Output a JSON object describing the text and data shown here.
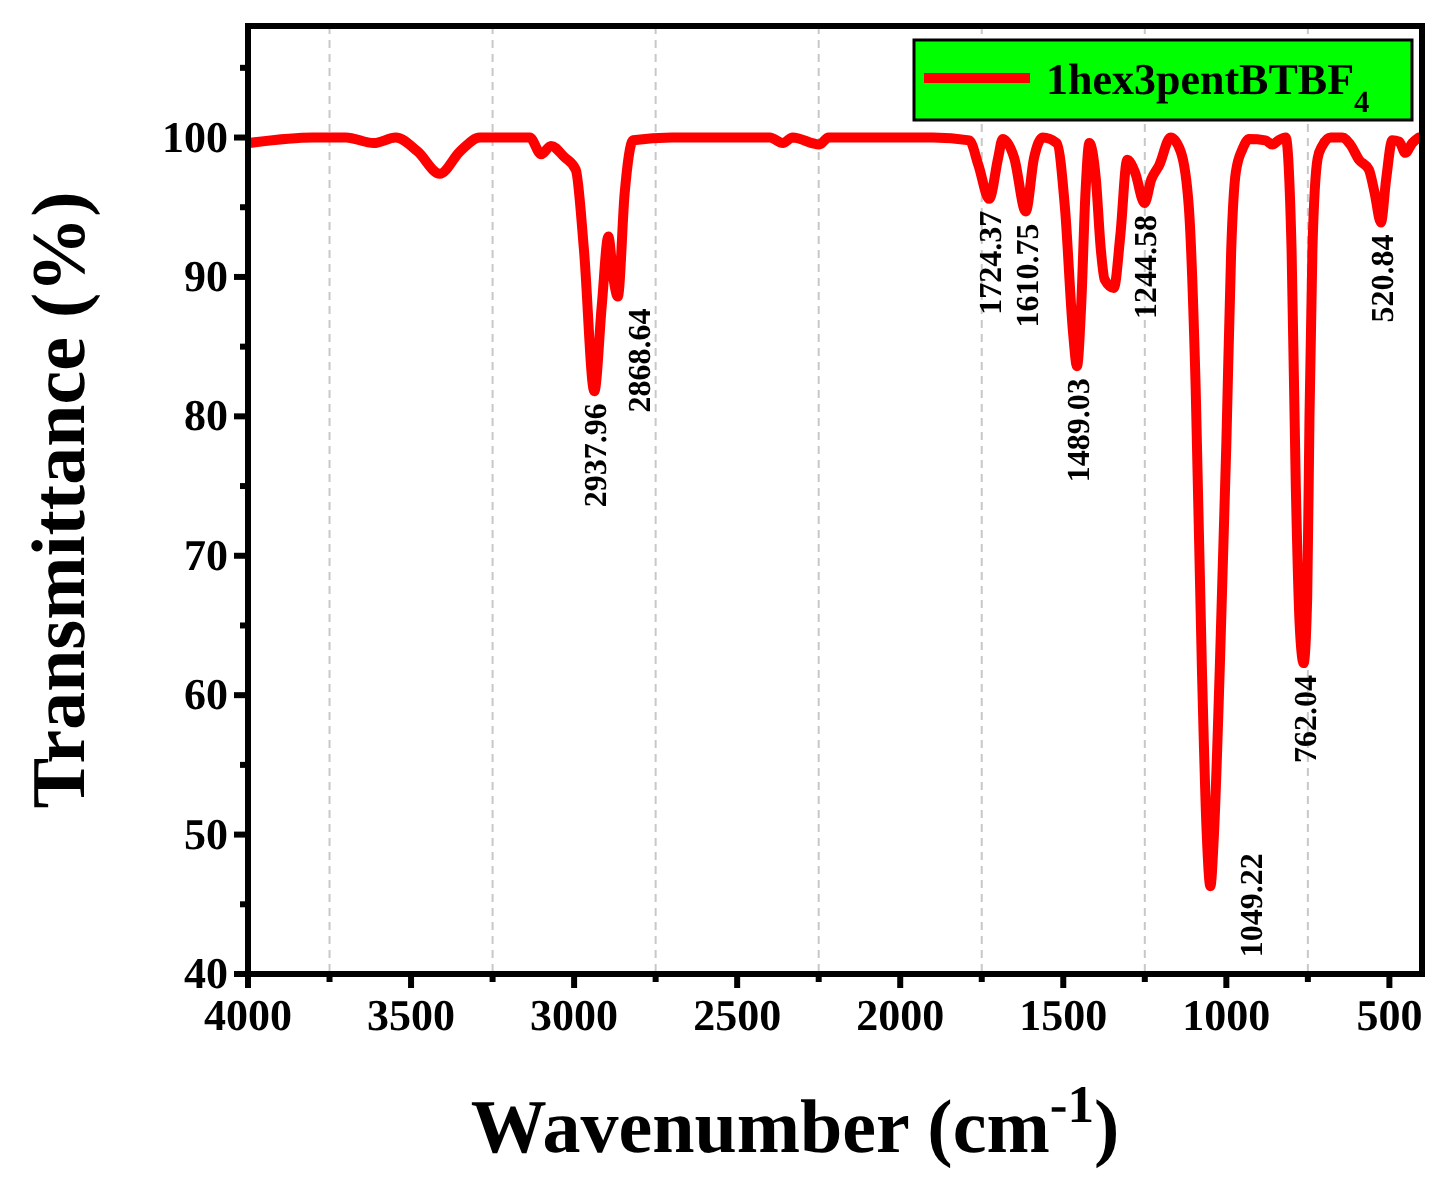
{
  "chart_data": {
    "type": "line",
    "xlabel": "Wavenumber (cm$^{-1}$)",
    "ylabel": "Transmittance (%)",
    "xlim": [
      4000,
      400
    ],
    "ylim": [
      40,
      108
    ],
    "xticks": [
      4000,
      {
        "value": 3750,
        "label": null
      },
      3500,
      {
        "value": 3250,
        "label": null
      },
      3000,
      {
        "value": 2750,
        "label": null
      },
      2500,
      {
        "value": 2250,
        "label": null
      },
      2000,
      {
        "value": 1750,
        "label": null
      },
      1500,
      {
        "value": 1250,
        "label": null
      },
      1000,
      {
        "value": 750,
        "label": null
      },
      500
    ],
    "yticks": [
      40,
      {
        "value": 45,
        "label": null
      },
      50,
      {
        "value": 55,
        "label": null
      },
      60,
      {
        "value": 65,
        "label": null
      },
      70,
      {
        "value": 75,
        "label": null
      },
      80,
      {
        "value": 85,
        "label": null
      },
      90,
      {
        "value": 95,
        "label": null
      },
      100,
      {
        "value": 105,
        "label": null
      }
    ],
    "grid": "x",
    "legend": "top right",
    "marker": "none",
    "line_style": "solid",
    "series": [
      {
        "name": "1hex3pentBTBF$_{4}$",
        "color": "#ff0000",
        "x": [
          4000,
          3800,
          3700,
          3614,
          3547,
          3480,
          3412,
          3350,
          3289,
          3136,
          3101,
          3071,
          3030,
          2995,
          2970,
          2938,
          2915,
          2895,
          2880,
          2866,
          2845,
          2819,
          2700,
          2400,
          2360,
          2330,
          2248,
          2220,
          1900,
          1788,
          1760,
          1727,
          1700,
          1686,
          1650,
          1615,
          1590,
          1563,
          1520,
          1495,
          1470,
          1458,
          1445,
          1432,
          1420,
          1400,
          1385,
          1373,
          1345,
          1325,
          1304,
          1280,
          1251,
          1230,
          1206,
          1171,
          1140,
          1115,
          1094,
          1075,
          1060,
          1049,
          1038,
          1020,
          1000,
          985,
          971,
          950,
          930,
          880,
          859,
          840,
          818,
          800,
          787,
          775,
          763,
          752,
          745,
          736,
          720,
          706,
          680,
          644,
          620,
          593,
          563,
          545,
          526,
          510,
          491,
          470,
          451,
          430,
          410
        ],
        "values": [
          99.6,
          100,
          100,
          99.6,
          100,
          99,
          97.4,
          99,
          100,
          100,
          98.8,
          99.4,
          98.6,
          97.7,
          92,
          81.8,
          88,
          92.9,
          90,
          88.6,
          96,
          99.8,
          100,
          100,
          99.6,
          100,
          99.5,
          100,
          100,
          99.8,
          98,
          95.6,
          98.5,
          99.9,
          98.5,
          94.7,
          98.5,
          100,
          99.6,
          95,
          86,
          83.6,
          88,
          96,
          99.6,
          97,
          92,
          89.8,
          89.2,
          93,
          98.4,
          97.5,
          95.3,
          97,
          98,
          100,
          99,
          95,
          82,
          62,
          50,
          46.3,
          50,
          62,
          78,
          92,
          97.5,
          99.2,
          99.9,
          99.8,
          99.5,
          99.8,
          100,
          92,
          75,
          65,
          62.3,
          67,
          80,
          92,
          98.5,
          99.4,
          100,
          100,
          99.5,
          98.4,
          97.7,
          96,
          93.9,
          97,
          99.8,
          99.7,
          98.9,
          99.6,
          100
        ]
      }
    ],
    "annotations": [
      {
        "text": "2937.96",
        "x": 2938,
        "y": 81.8
      },
      {
        "text": "2868.64",
        "x": 2866,
        "y": 88.6
      },
      {
        "text": "1724.37",
        "x": 1727,
        "y": 95.6
      },
      {
        "text": "1610.75",
        "x": 1615,
        "y": 94.7
      },
      {
        "text": "1489.03",
        "x": 1458,
        "y": 83.6
      },
      {
        "text": "1244.58",
        "x": 1251,
        "y": 95.3
      },
      {
        "text": "1049.22",
        "x": 1049,
        "y": 46.3
      },
      {
        "text": "762.04",
        "x": 763,
        "y": 62.3
      },
      {
        "text": "520.84",
        "x": 526,
        "y": 93.9
      }
    ]
  }
}
